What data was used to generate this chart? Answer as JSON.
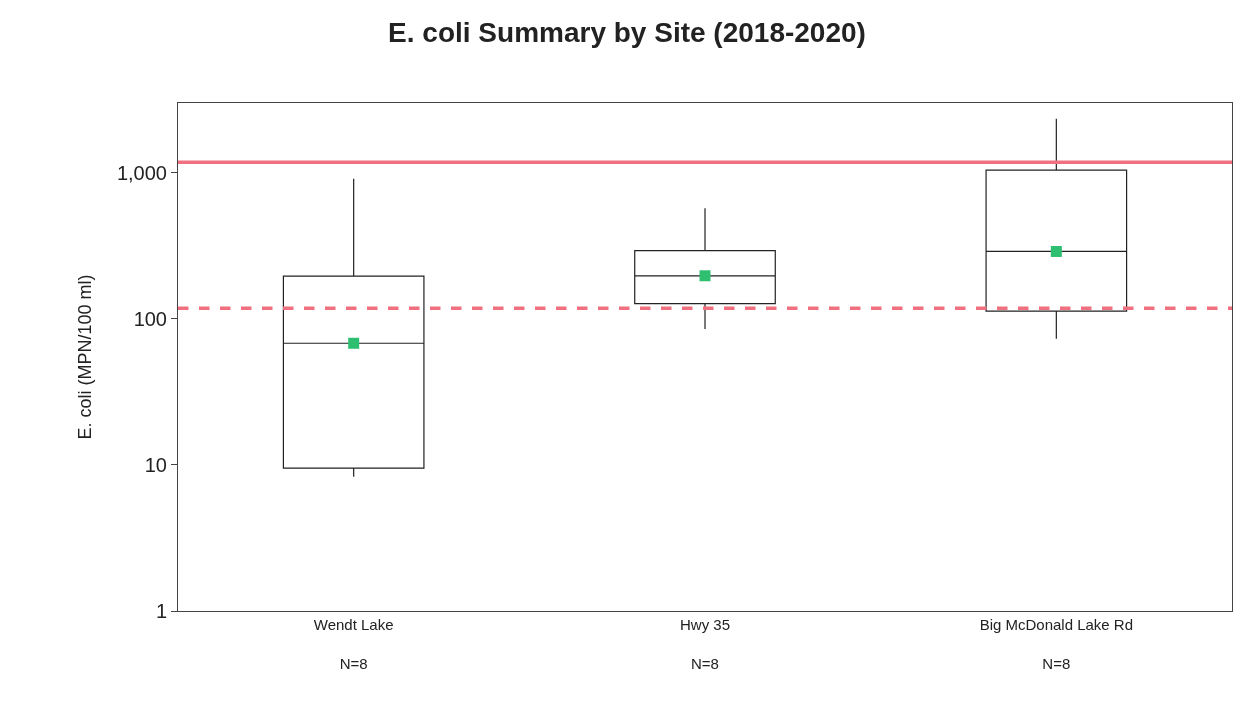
{
  "chart_data": {
    "type": "box",
    "title": "E. coli Summary by Site (2018-2020)",
    "ylabel": "E. coli (MPN/100 ml)",
    "categories": [
      "Wendt Lake\nN=8",
      "Hwy 35\nN=8",
      "Big McDonald Lake Rd\nN=8"
    ],
    "series": [
      {
        "color": "#222222",
        "boxes": [
          {
            "low": 8.3,
            "q1": 9.5,
            "median": 68,
            "q3": 196,
            "high": 910
          },
          {
            "low": 85,
            "q1": 127,
            "median": 197,
            "q3": 293,
            "high": 570
          },
          {
            "low": 73,
            "q1": 113,
            "median": 289,
            "q3": 1040,
            "high": 2340
          }
        ]
      },
      {
        "type": "scatter",
        "color": "#2fbf71",
        "marker": "square",
        "values": [
          68,
          197,
          289
        ]
      }
    ],
    "log": true,
    "ylim": [
      1,
      3000
    ],
    "yticks": [
      1,
      10,
      100,
      {
        "value": 1000,
        "label": "1,000"
      }
    ],
    "ref_lines": [
      {
        "axis": "y",
        "value": 1180,
        "label": null,
        "color": "#f07080",
        "line_style": "solid"
      },
      {
        "axis": "y",
        "value": 118,
        "label": null,
        "color": "#f07080",
        "line_style": "dashed"
      }
    ]
  }
}
